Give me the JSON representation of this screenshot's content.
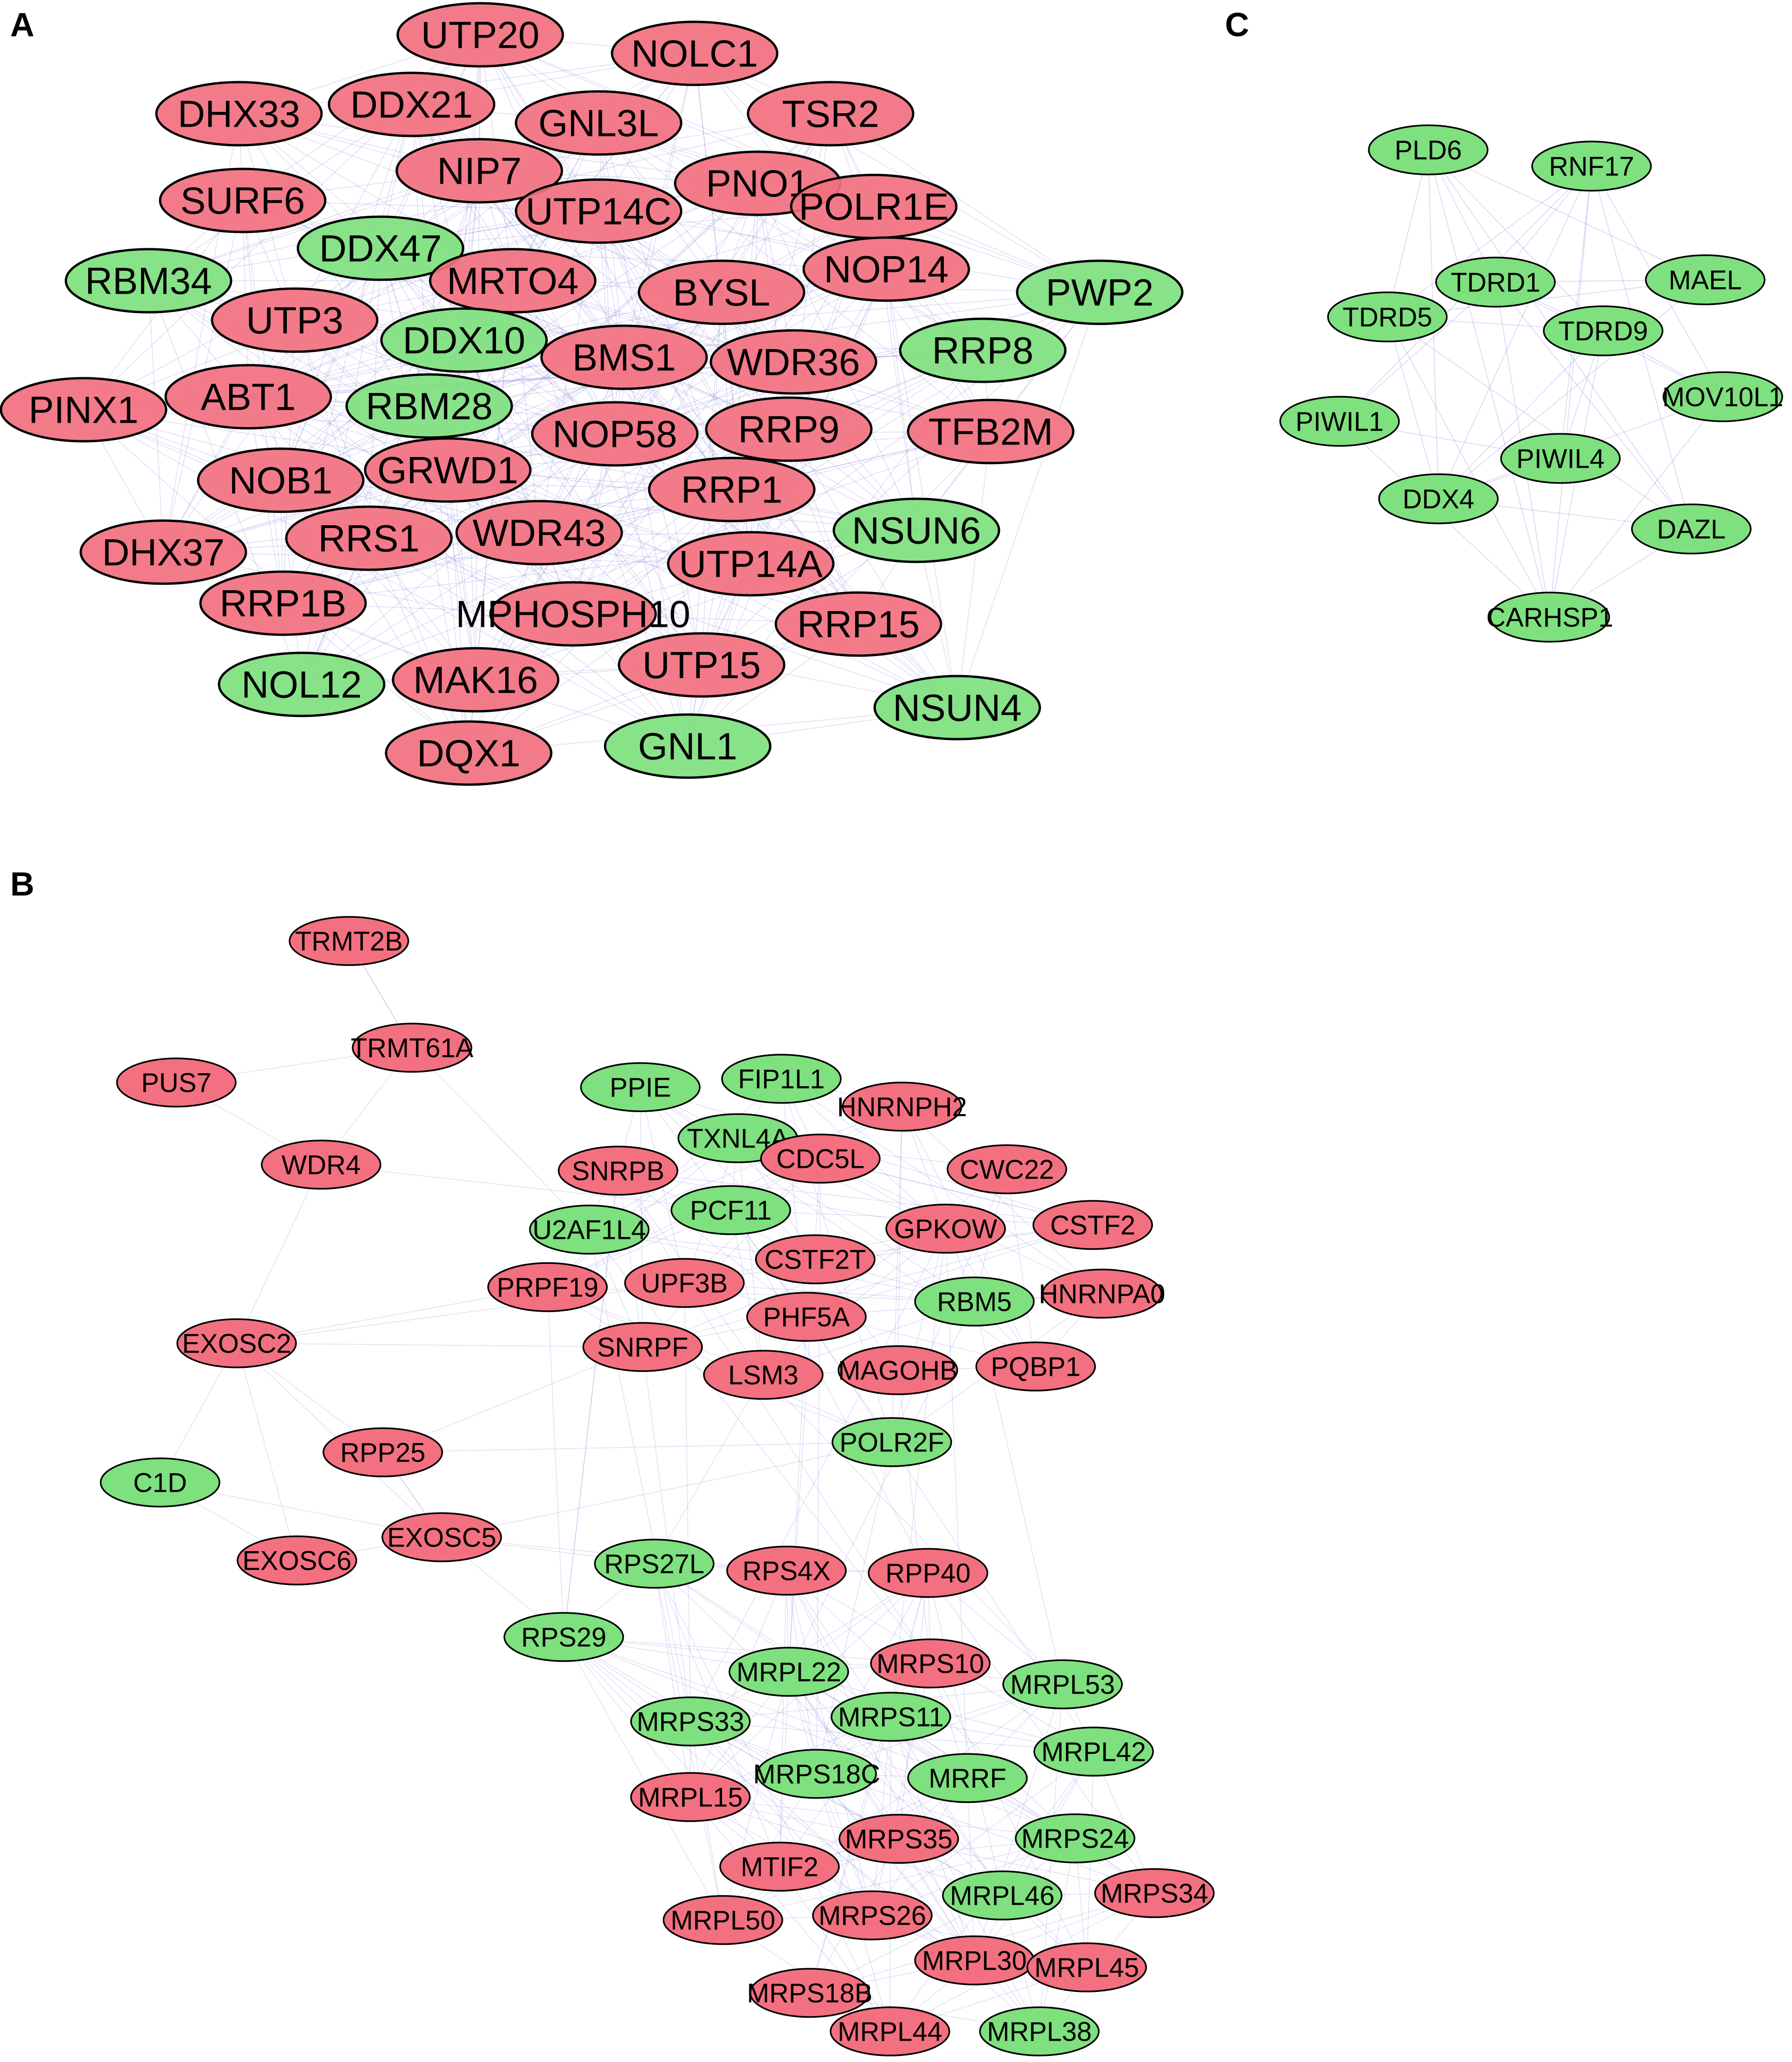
{
  "colors": {
    "up": "#f2707f",
    "down": "#7ee07e",
    "edge": "#6a6ad8",
    "stroke": "#000000"
  },
  "panels": [
    {
      "id": "A",
      "label": "A",
      "nodes": [
        {
          "label": "UTP20",
          "group": "up"
        },
        {
          "label": "NOLC1",
          "group": "up"
        },
        {
          "label": "DHX33",
          "group": "up"
        },
        {
          "label": "DDX21",
          "group": "up"
        },
        {
          "label": "GNL3L",
          "group": "up"
        },
        {
          "label": "TSR2",
          "group": "up"
        },
        {
          "label": "NIP7",
          "group": "up"
        },
        {
          "label": "SURF6",
          "group": "up"
        },
        {
          "label": "UTP14C",
          "group": "up"
        },
        {
          "label": "PNO1",
          "group": "up"
        },
        {
          "label": "POLR1E",
          "group": "up"
        },
        {
          "label": "DDX47",
          "group": "down"
        },
        {
          "label": "RBM34",
          "group": "down"
        },
        {
          "label": "MRTO4",
          "group": "up"
        },
        {
          "label": "NOP14",
          "group": "up"
        },
        {
          "label": "BYSL",
          "group": "up"
        },
        {
          "label": "PWP2",
          "group": "down"
        },
        {
          "label": "UTP3",
          "group": "up"
        },
        {
          "label": "DDX10",
          "group": "down"
        },
        {
          "label": "BMS1",
          "group": "up"
        },
        {
          "label": "WDR36",
          "group": "up"
        },
        {
          "label": "RRP8",
          "group": "down"
        },
        {
          "label": "PINX1",
          "group": "up"
        },
        {
          "label": "ABT1",
          "group": "up"
        },
        {
          "label": "RBM28",
          "group": "down"
        },
        {
          "label": "NOP58",
          "group": "up"
        },
        {
          "label": "RRP9",
          "group": "up"
        },
        {
          "label": "TFB2M",
          "group": "up"
        },
        {
          "label": "NOB1",
          "group": "up"
        },
        {
          "label": "GRWD1",
          "group": "up"
        },
        {
          "label": "RRP1",
          "group": "up"
        },
        {
          "label": "DHX37",
          "group": "up"
        },
        {
          "label": "RRS1",
          "group": "up"
        },
        {
          "label": "WDR43",
          "group": "up"
        },
        {
          "label": "NSUN6",
          "group": "down"
        },
        {
          "label": "UTP14A",
          "group": "up"
        },
        {
          "label": "RRP1B",
          "group": "up"
        },
        {
          "label": "MPHOSPH10",
          "group": "up"
        },
        {
          "label": "RRP15",
          "group": "up"
        },
        {
          "label": "NOL12",
          "group": "down"
        },
        {
          "label": "MAK16",
          "group": "up"
        },
        {
          "label": "UTP15",
          "group": "up"
        },
        {
          "label": "NSUN4",
          "group": "down"
        },
        {
          "label": "DQX1",
          "group": "up"
        },
        {
          "label": "GNL1",
          "group": "down"
        }
      ]
    },
    {
      "id": "B",
      "label": "B",
      "nodes": [
        {
          "label": "TRMT2B",
          "group": "up"
        },
        {
          "label": "TRMT61A",
          "group": "up"
        },
        {
          "label": "PUS7",
          "group": "up"
        },
        {
          "label": "WDR4",
          "group": "up"
        },
        {
          "label": "EXOSC2",
          "group": "up"
        },
        {
          "label": "C1D",
          "group": "down"
        },
        {
          "label": "EXOSC6",
          "group": "up"
        },
        {
          "label": "EXOSC5",
          "group": "up"
        },
        {
          "label": "RPP25",
          "group": "up"
        },
        {
          "label": "PPIE",
          "group": "down"
        },
        {
          "label": "FIP1L1",
          "group": "down"
        },
        {
          "label": "HNRNPH2",
          "group": "up"
        },
        {
          "label": "TXNL4A",
          "group": "down"
        },
        {
          "label": "SNRPB",
          "group": "up"
        },
        {
          "label": "CDC5L",
          "group": "up"
        },
        {
          "label": "CWC22",
          "group": "up"
        },
        {
          "label": "PCF11",
          "group": "down"
        },
        {
          "label": "U2AF1L4",
          "group": "down"
        },
        {
          "label": "GPKOW",
          "group": "up"
        },
        {
          "label": "CSTF2",
          "group": "up"
        },
        {
          "label": "CSTF2T",
          "group": "up"
        },
        {
          "label": "PRPF19",
          "group": "up"
        },
        {
          "label": "UPF3B",
          "group": "up"
        },
        {
          "label": "RBM5",
          "group": "down"
        },
        {
          "label": "HNRNPA0",
          "group": "up"
        },
        {
          "label": "PHF5A",
          "group": "up"
        },
        {
          "label": "SNRPF",
          "group": "up"
        },
        {
          "label": "LSM3",
          "group": "up"
        },
        {
          "label": "MAGOHB",
          "group": "up"
        },
        {
          "label": "PQBP1",
          "group": "up"
        },
        {
          "label": "POLR2F",
          "group": "down"
        },
        {
          "label": "RPS27L",
          "group": "down"
        },
        {
          "label": "RPS4X",
          "group": "up"
        },
        {
          "label": "RPP40",
          "group": "up"
        },
        {
          "label": "RPS29",
          "group": "down"
        },
        {
          "label": "MRPL22",
          "group": "down"
        },
        {
          "label": "MRPS10",
          "group": "up"
        },
        {
          "label": "MRPL53",
          "group": "down"
        },
        {
          "label": "MRPS33",
          "group": "down"
        },
        {
          "label": "MRPS11",
          "group": "down"
        },
        {
          "label": "MRPS18C",
          "group": "down"
        },
        {
          "label": "MRRF",
          "group": "down"
        },
        {
          "label": "MRPL42",
          "group": "down"
        },
        {
          "label": "MRPL15",
          "group": "up"
        },
        {
          "label": "MRPS35",
          "group": "up"
        },
        {
          "label": "MRPS24",
          "group": "down"
        },
        {
          "label": "MTIF2",
          "group": "up"
        },
        {
          "label": "MRPL46",
          "group": "down"
        },
        {
          "label": "MRPS34",
          "group": "up"
        },
        {
          "label": "MRPL50",
          "group": "up"
        },
        {
          "label": "MRPS26",
          "group": "up"
        },
        {
          "label": "MRPL30",
          "group": "up"
        },
        {
          "label": "MRPL45",
          "group": "up"
        },
        {
          "label": "MRPS18B",
          "group": "up"
        },
        {
          "label": "MRPL44",
          "group": "up"
        },
        {
          "label": "MRPL38",
          "group": "down"
        }
      ]
    },
    {
      "id": "C",
      "label": "C",
      "nodes": [
        {
          "label": "PLD6",
          "group": "down"
        },
        {
          "label": "RNF17",
          "group": "down"
        },
        {
          "label": "TDRD1",
          "group": "down"
        },
        {
          "label": "MAEL",
          "group": "down"
        },
        {
          "label": "TDRD5",
          "group": "down"
        },
        {
          "label": "TDRD9",
          "group": "down"
        },
        {
          "label": "MOV10L1",
          "group": "down"
        },
        {
          "label": "PIWIL1",
          "group": "down"
        },
        {
          "label": "PIWIL4",
          "group": "down"
        },
        {
          "label": "DDX4",
          "group": "down"
        },
        {
          "label": "DAZL",
          "group": "down"
        },
        {
          "label": "CARHSP1",
          "group": "down"
        }
      ]
    }
  ]
}
